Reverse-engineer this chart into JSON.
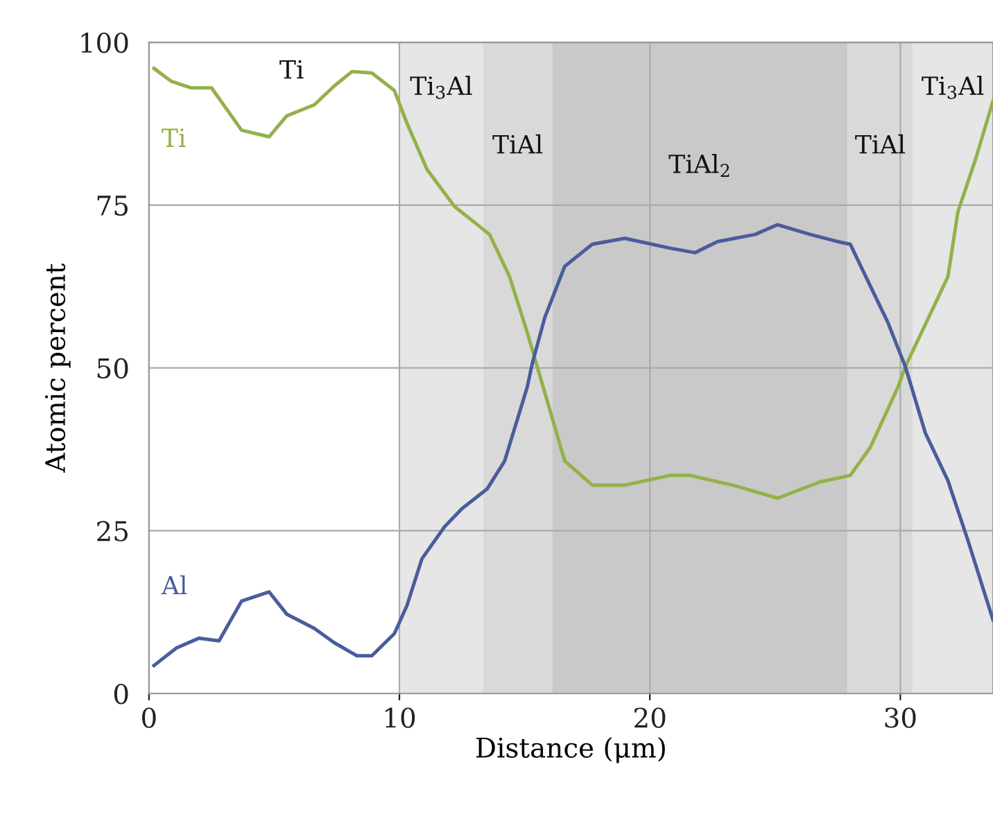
{
  "chart_data": {
    "type": "line",
    "xlabel": "Distance (μm)",
    "annotations": [
      "Ti"
    ],
    "ylabel": "Atomic percent",
    "xlim": [
      0,
      33.7
    ],
    "ylim": [
      0,
      100
    ],
    "xticks": [
      0,
      10,
      20,
      30
    ],
    "yticks": [
      0,
      25,
      50,
      75,
      100
    ],
    "grid": true,
    "legend": false,
    "marker": "none",
    "line_style": "solid",
    "series": [
      {
        "name": "Ti",
        "color": "#94b14a",
        "x": [
          0.2,
          0.9,
          1.7,
          2.5,
          3.7,
          4.8,
          5.5,
          6.6,
          7.4,
          8.1,
          8.9,
          9.8,
          10.3,
          11.1,
          12.2,
          13.6,
          14.4,
          15.1,
          15.7,
          16.6,
          17.7,
          19,
          20.8,
          21.6,
          23.3,
          25.1,
          26.8,
          28,
          28.8,
          29.9,
          30.2,
          31.9,
          32.3,
          33,
          33.7
        ],
        "values": [
          96,
          94,
          93,
          93,
          86.5,
          85.5,
          88.7,
          90.4,
          93.3,
          95.5,
          95.3,
          92.6,
          87.6,
          80.5,
          74.8,
          70.5,
          64,
          55.5,
          47.6,
          35.7,
          32,
          32,
          33.5,
          33.5,
          32,
          30,
          32.5,
          33.5,
          37.8,
          47,
          50.2,
          64,
          74,
          82,
          91
        ]
      },
      {
        "name": "Al",
        "color": "#4a5c9c",
        "x": [
          0.2,
          1.1,
          2,
          2.8,
          3.7,
          4.8,
          5.5,
          6.6,
          7.4,
          8.3,
          8.9,
          9.8,
          10.3,
          10.9,
          11.8,
          12.5,
          13.5,
          14.2,
          15.1,
          15.3,
          15.8,
          16.6,
          17.7,
          19,
          20.8,
          21.8,
          22.7,
          24.2,
          25.1,
          26.4,
          27.5,
          28,
          28.8,
          29.5,
          30.2,
          31,
          31.9,
          32.7,
          33.7
        ],
        "values": [
          4.3,
          7,
          8.5,
          8.1,
          14.2,
          15.6,
          12.2,
          10,
          7.8,
          5.8,
          5.8,
          9.2,
          13.5,
          20.7,
          25.6,
          28.4,
          31.4,
          35.7,
          47,
          50.6,
          57.7,
          65.6,
          69,
          69.9,
          68.4,
          67.7,
          69.4,
          70.5,
          72,
          70.5,
          69.4,
          69,
          62.6,
          57,
          50.2,
          40,
          32.7,
          23.5,
          11.3
        ]
      }
    ],
    "bands": [
      {
        "axis": "x",
        "from": 10,
        "to": 13.35,
        "label": "Ti$_{3}$Al",
        "color": "#e6e6e6"
      },
      {
        "axis": "x",
        "from": 13.35,
        "to": 16.1,
        "label": "TiAl",
        "color": "#d9d9d9"
      },
      {
        "axis": "x",
        "from": 16.1,
        "to": 27.9,
        "label": "TiAl$_{2}$",
        "color": "#c9c9c9"
      },
      {
        "axis": "x",
        "from": 27.9,
        "to": 30.5,
        "label": "TiAl",
        "color": "#d9d9d9"
      },
      {
        "axis": "x",
        "from": 30.5,
        "to": 33.7,
        "label": "Ti$_{3}$Al",
        "color": "#e6e6e6"
      }
    ]
  }
}
